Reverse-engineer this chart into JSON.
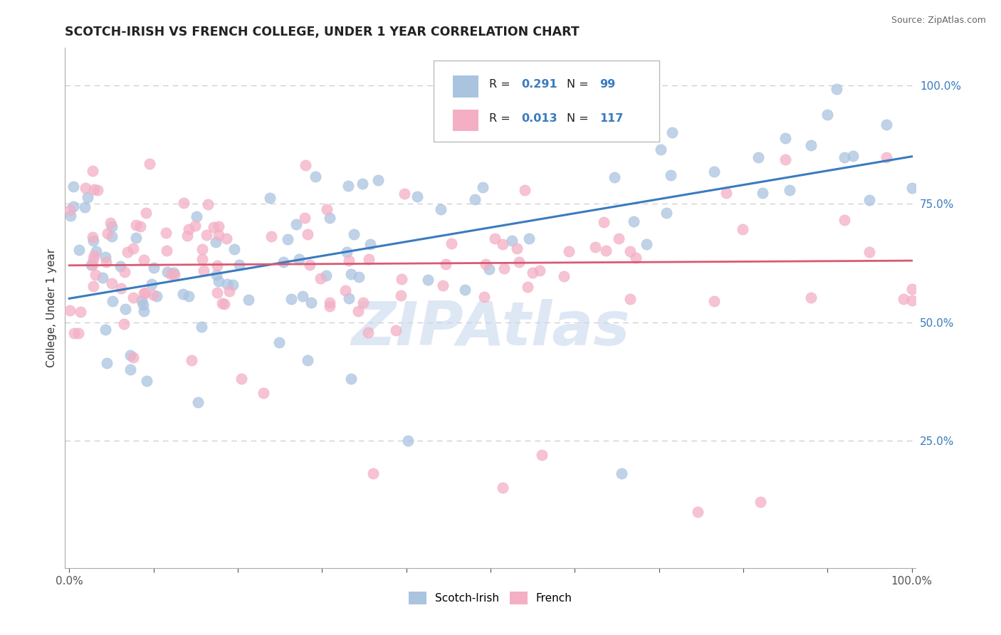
{
  "title": "SCOTCH-IRISH VS FRENCH COLLEGE, UNDER 1 YEAR CORRELATION CHART",
  "ylabel": "College, Under 1 year",
  "source": "Source: ZipAtlas.com",
  "blue_R": 0.291,
  "blue_N": 99,
  "pink_R": 0.013,
  "pink_N": 117,
  "blue_color": "#aac4e0",
  "pink_color": "#f4afc5",
  "blue_line_color": "#3a7bbf",
  "pink_line_color": "#d95a72",
  "watermark_color": "#c8d8ee",
  "blue_slope": 0.3,
  "blue_intercept": 0.55,
  "pink_slope": 0.01,
  "pink_intercept": 0.62,
  "ytick_right": [
    0.25,
    0.5,
    0.75,
    1.0
  ],
  "ytick_right_labels": [
    "25.0%",
    "50.0%",
    "75.0%",
    "100.0%"
  ],
  "legend_labels": [
    "Scotch-Irish",
    "French"
  ],
  "grid_color": "#cccccc",
  "dot_size": 120
}
